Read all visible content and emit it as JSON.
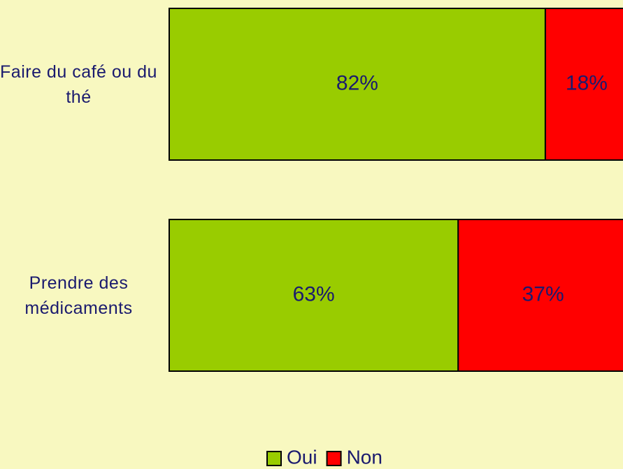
{
  "chart_data": {
    "type": "stacked-bar-horizontal",
    "categories": [
      "Faire du café ou du thé",
      "Prendre des médicaments"
    ],
    "series": [
      {
        "name": "Oui",
        "color": "#99cc00",
        "values": [
          82,
          63
        ],
        "value_labels": [
          "82%",
          "63%"
        ]
      },
      {
        "name": "Non",
        "color": "#ff0000",
        "values": [
          18,
          37
        ],
        "value_labels": [
          "18%",
          "37%"
        ]
      }
    ],
    "xlim": [
      0,
      100
    ],
    "legend": "bottom"
  }
}
